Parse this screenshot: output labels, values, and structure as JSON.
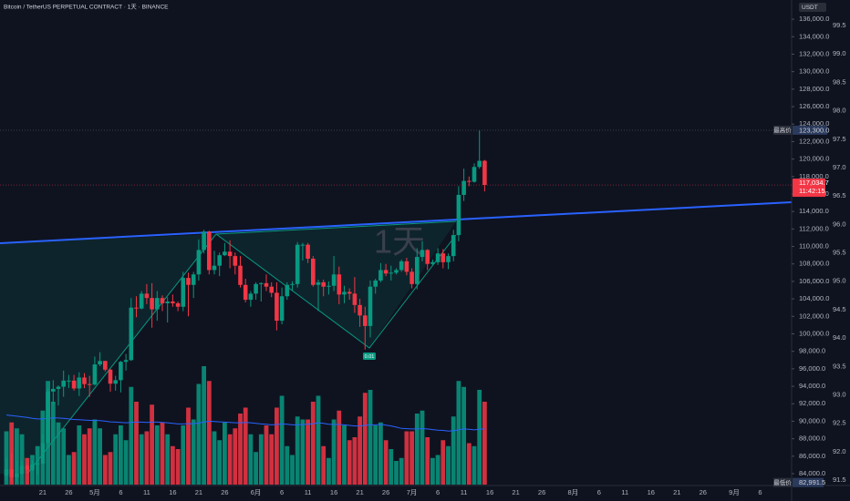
{
  "chart_data": {
    "type": "candlestick",
    "title": "Bitcoin / TetherUS PERPETUAL CONTRACT · 1天 · BINANCE",
    "watermark": "1天",
    "currency": "USDT",
    "categories": [
      null,
      null,
      null,
      null,
      null,
      null,
      null,
      "21",
      null,
      null,
      null,
      null,
      "26",
      null,
      null,
      null,
      null,
      "5月",
      null,
      null,
      null,
      null,
      "6",
      null,
      null,
      null,
      null,
      "11",
      null,
      null,
      null,
      null,
      "16",
      null,
      null,
      null,
      null,
      "21",
      null,
      null,
      null,
      null,
      "26",
      null,
      null,
      null,
      null,
      null,
      "6月",
      null,
      null,
      null,
      null,
      "6",
      null,
      null,
      null,
      null,
      "11",
      null,
      null,
      null,
      null,
      "16",
      null,
      null,
      null,
      null,
      "21",
      null,
      null,
      null,
      null,
      "26",
      null,
      null,
      null,
      null,
      "7月",
      null,
      null,
      null,
      null,
      "6",
      null,
      null,
      null,
      null,
      "11",
      null,
      null,
      null,
      null,
      "16",
      null,
      null,
      null,
      null,
      "21",
      null,
      null,
      null,
      null,
      "26",
      null,
      null,
      null,
      null,
      null,
      "8月",
      null,
      null,
      null,
      null,
      "6",
      null,
      null,
      null,
      null,
      "11",
      null,
      null,
      null,
      null,
      "16",
      null,
      null,
      null,
      null,
      "21",
      null,
      null,
      null,
      null,
      "26",
      null,
      null,
      null,
      null,
      null,
      "9月",
      null,
      null,
      null,
      null,
      "6",
      null,
      null
    ],
    "open": [
      83750,
      84500,
      83600,
      84000,
      84900,
      84450,
      85050,
      85150,
      87500,
      93400,
      93700,
      93950,
      94650,
      94650,
      93750,
      95000,
      94250,
      94200,
      96500,
      96900,
      95900,
      94300,
      94700,
      96800,
      97000,
      103000,
      102900,
      104600,
      104100,
      102800,
      104100,
      103500,
      103700,
      103500,
      103100,
      106400,
      105600,
      106800,
      109600,
      111700,
      107300,
      107800,
      109000,
      109400,
      108900,
      107800,
      105600,
      103900,
      104600,
      105700,
      105800,
      105400,
      104700,
      101500,
      104300,
      105600,
      105700,
      110200,
      110200,
      108600,
      105600,
      105900,
      105400,
      105500,
      106800,
      104500,
      104800,
      104600,
      103300,
      102100,
      100900,
      105400,
      106100,
      107300,
      106900,
      107000,
      107300,
      108300,
      107100,
      105700,
      108800,
      109600,
      108000,
      108200,
      109200,
      108200,
      108900,
      111300,
      115900,
      117500,
      117400,
      119100,
      119800,
      null,
      null,
      null,
      null,
      null,
      null,
      null,
      null,
      null,
      null,
      null,
      null,
      null,
      null,
      null,
      null,
      null,
      null,
      null,
      null,
      null,
      null,
      null,
      null,
      null,
      null,
      null,
      null,
      null,
      null,
      null,
      null,
      null,
      null,
      null,
      null,
      null,
      null,
      null,
      null,
      null,
      null,
      null,
      null,
      null,
      null,
      null,
      null,
      null,
      null,
      null,
      null,
      null,
      null,
      null
    ],
    "high": [
      85800,
      86400,
      85500,
      85400,
      85100,
      85500,
      85300,
      88500,
      93800,
      94700,
      94100,
      95800,
      95300,
      95300,
      95600,
      95500,
      95200,
      97400,
      97900,
      96900,
      96000,
      95200,
      96900,
      97700,
      104100,
      104300,
      104900,
      105700,
      105800,
      104900,
      104400,
      104200,
      104500,
      103700,
      107100,
      107000,
      107100,
      110800,
      111900,
      111800,
      109500,
      109300,
      110400,
      110700,
      109300,
      108900,
      106300,
      104900,
      105900,
      105900,
      106800,
      105900,
      105900,
      105300,
      105900,
      106000,
      110500,
      110400,
      110400,
      108900,
      106200,
      106200,
      106000,
      108900,
      107700,
      105500,
      105200,
      106500,
      104000,
      103100,
      106100,
      106300,
      108100,
      108000,
      107800,
      107500,
      108500,
      108700,
      107500,
      109800,
      110600,
      109700,
      108500,
      109800,
      109700,
      109200,
      111900,
      116900,
      118900,
      118000,
      119500,
      123300,
      119900,
      null,
      null,
      null,
      null,
      null,
      null,
      null,
      null,
      null,
      null,
      null,
      null,
      null,
      null,
      null,
      null,
      null,
      null,
      null,
      null,
      null,
      null,
      null,
      null,
      null,
      null,
      null,
      null,
      null,
      null,
      null,
      null,
      null,
      null,
      null,
      null,
      null,
      null,
      null,
      null,
      null,
      null,
      null,
      null,
      null,
      null,
      null,
      null,
      null,
      null,
      null,
      null,
      null,
      null,
      null
    ],
    "low": [
      83200,
      83100,
      83000,
      83800,
      84100,
      84300,
      83900,
      85100,
      87000,
      91900,
      91800,
      92800,
      93800,
      93500,
      92900,
      93800,
      92800,
      94100,
      96300,
      95700,
      93400,
      93500,
      93300,
      95800,
      96900,
      101900,
      102800,
      103400,
      100700,
      101500,
      102600,
      101300,
      103100,
      102600,
      102600,
      102000,
      104100,
      106100,
      109200,
      106800,
      106800,
      106600,
      108900,
      107500,
      106800,
      105300,
      103600,
      103100,
      103900,
      103700,
      104900,
      104200,
      100400,
      101100,
      103900,
      104900,
      105300,
      108400,
      108100,
      105400,
      102600,
      104300,
      104500,
      104900,
      103400,
      103500,
      103900,
      102400,
      100800,
      98200,
      99600,
      104600,
      105900,
      106600,
      106100,
      106800,
      107100,
      106700,
      105200,
      105100,
      108300,
      107300,
      107800,
      107900,
      107500,
      107400,
      108300,
      110600,
      115200,
      116900,
      117300,
      118900,
      116300,
      null,
      null,
      null,
      null,
      null,
      null,
      null,
      null,
      null,
      null,
      null,
      null,
      null,
      null,
      null,
      null,
      null,
      null,
      null,
      null,
      null,
      null,
      null,
      null,
      null,
      null,
      null,
      null,
      null,
      null,
      null,
      null,
      null,
      null,
      null,
      null,
      null,
      null,
      null,
      null,
      null,
      null,
      null,
      null,
      null,
      null,
      null,
      null,
      null,
      null,
      null,
      null,
      null,
      null,
      null
    ],
    "close": [
      84500,
      83600,
      84000,
      84900,
      84450,
      85050,
      85150,
      87500,
      93400,
      93700,
      93950,
      94650,
      94650,
      93750,
      95000,
      94250,
      94200,
      96500,
      96900,
      95900,
      94300,
      94700,
      96800,
      97000,
      103000,
      102900,
      104600,
      104100,
      102800,
      104100,
      103500,
      103700,
      103500,
      103100,
      106400,
      105600,
      106800,
      109600,
      111700,
      107300,
      107800,
      109000,
      109400,
      108900,
      107800,
      105600,
      103900,
      104600,
      105700,
      105800,
      105400,
      104700,
      101500,
      104300,
      105600,
      105700,
      110200,
      110200,
      108600,
      105600,
      105900,
      105400,
      105500,
      106800,
      104500,
      104800,
      104600,
      103300,
      102100,
      100900,
      105400,
      106100,
      107300,
      106900,
      107000,
      107300,
      108300,
      107100,
      105700,
      108800,
      109600,
      108000,
      108200,
      109200,
      108200,
      108900,
      111300,
      115900,
      117500,
      117400,
      119100,
      119800,
      117034.7,
      null,
      null,
      null,
      null,
      null,
      null,
      null,
      null,
      null,
      null,
      null,
      null,
      null,
      null,
      null,
      null,
      null,
      null,
      null,
      null,
      null,
      null,
      null,
      null,
      null,
      null,
      null,
      null,
      null,
      null,
      null,
      null,
      null,
      null,
      null,
      null,
      null,
      null,
      null,
      null,
      null,
      null,
      null,
      null,
      null,
      null,
      null,
      null,
      null,
      null,
      null,
      null,
      null,
      null,
      null
    ],
    "volume": [
      180,
      210,
      190,
      170,
      90,
      100,
      130,
      250,
      350,
      280,
      210,
      190,
      100,
      110,
      200,
      170,
      190,
      220,
      190,
      100,
      110,
      170,
      200,
      150,
      330,
      280,
      170,
      180,
      270,
      200,
      210,
      170,
      130,
      120,
      200,
      260,
      220,
      340,
      400,
      350,
      180,
      150,
      210,
      170,
      190,
      240,
      260,
      170,
      110,
      170,
      200,
      170,
      260,
      300,
      130,
      100,
      230,
      220,
      220,
      280,
      300,
      130,
      90,
      220,
      250,
      200,
      150,
      160,
      230,
      310,
      320,
      200,
      210,
      150,
      120,
      80,
      90,
      180,
      180,
      240,
      250,
      160,
      90,
      100,
      150,
      130,
      230,
      350,
      330,
      140,
      130,
      320,
      280,
      null,
      null,
      null,
      null,
      null,
      null,
      null,
      null,
      null,
      null,
      null,
      null,
      null,
      null,
      null,
      null,
      null,
      null,
      null,
      null,
      null,
      null,
      null,
      null,
      null,
      null,
      null,
      null,
      null,
      null,
      null,
      null,
      null,
      null,
      null,
      null,
      null,
      null,
      null,
      null,
      null,
      null,
      null,
      null,
      null,
      null,
      null,
      null,
      null,
      null,
      null,
      null,
      null,
      null,
      null
    ],
    "volume_ma": [
      235,
      233,
      231,
      229,
      227,
      224,
      222,
      222,
      224,
      225,
      225,
      224,
      222,
      220,
      219,
      218,
      217,
      217,
      216,
      214,
      212,
      211,
      210,
      209,
      210,
      211,
      211,
      210,
      211,
      211,
      210,
      209,
      207,
      205,
      205,
      206,
      206,
      208,
      211,
      214,
      213,
      212,
      211,
      210,
      209,
      209,
      210,
      209,
      207,
      205,
      204,
      202,
      203,
      205,
      204,
      202,
      202,
      203,
      204,
      206,
      209,
      207,
      204,
      203,
      203,
      202,
      200,
      198,
      198,
      200,
      202,
      202,
      203,
      201,
      198,
      194,
      190,
      189,
      188,
      188,
      189,
      188,
      186,
      184,
      183,
      181,
      182,
      185,
      188,
      187,
      185,
      187,
      188,
      null,
      null,
      null,
      null,
      null,
      null,
      null,
      null,
      null,
      null,
      null,
      null,
      null,
      null,
      null,
      null,
      null,
      null,
      null,
      null,
      null,
      null,
      null,
      null,
      null,
      null,
      null,
      null,
      null,
      null,
      null,
      null,
      null,
      null,
      null,
      null,
      null,
      null,
      null,
      null,
      null,
      null,
      null,
      null,
      null,
      null,
      null,
      null,
      null,
      null,
      null,
      null,
      null,
      null,
      null
    ],
    "up_color": "#089981",
    "down_color": "#f23645",
    "volume_ma_color": "#2962ff",
    "ylim": [
      82750,
      138200
    ],
    "yticks": [
      {
        "value": 136000,
        "label": "136,000.0"
      },
      {
        "value": 134000,
        "label": "134,000.0"
      },
      {
        "value": 132000,
        "label": "132,000.0"
      },
      {
        "value": 130000,
        "label": "130,000.0"
      },
      {
        "value": 128000,
        "label": "128,000.0"
      },
      {
        "value": 126000,
        "label": "126,000.0"
      },
      {
        "value": 124000,
        "label": "124,000.0"
      },
      {
        "value": 122000,
        "label": "122,000.0"
      },
      {
        "value": 120000,
        "label": "120,000.0"
      },
      {
        "value": 118000,
        "label": "118,000.0"
      },
      {
        "value": 116000,
        "label": "116,000.0"
      },
      {
        "value": 114000,
        "label": "114,000.0"
      },
      {
        "value": 112000,
        "label": "112,000.0"
      },
      {
        "value": 110000,
        "label": "110,000.0"
      },
      {
        "value": 108000,
        "label": "108,000.0"
      },
      {
        "value": 106000,
        "label": "106,000.0"
      },
      {
        "value": 104000,
        "label": "104,000.0"
      },
      {
        "value": 102000,
        "label": "102,000.0"
      },
      {
        "value": 100000,
        "label": "100,000.0"
      },
      {
        "value": 98000,
        "label": "98,000.0"
      },
      {
        "value": 96000,
        "label": "96,000.0"
      },
      {
        "value": 94000,
        "label": "94,000.0"
      },
      {
        "value": 92000,
        "label": "92,000.0"
      },
      {
        "value": 90000,
        "label": "90,000.0"
      },
      {
        "value": 88000,
        "label": "88,000.0"
      },
      {
        "value": 86000,
        "label": "86,000.0"
      },
      {
        "value": 84000,
        "label": "84,000.0"
      }
    ],
    "y2lim": [
      91.42,
      99.95
    ],
    "y2ticks": [
      99.5,
      {
        "value": 99,
        "label": "99.0"
      },
      98.5,
      {
        "value": 98,
        "label": "98.0"
      },
      97.5,
      {
        "value": 97,
        "label": "97.0"
      },
      96.5,
      {
        "value": 96,
        "label": "96.0"
      },
      95.5,
      {
        "value": 95,
        "label": "95.0"
      },
      94.5,
      {
        "value": 94,
        "label": "94.0"
      },
      93.5,
      {
        "value": 93,
        "label": "93.0"
      },
      92.5,
      {
        "value": 92,
        "label": "92.0"
      },
      91.5
    ],
    "high_marker": {
      "label": "最高价",
      "value": 123300,
      "value_label": "123,300.0"
    },
    "low_marker": {
      "label": "最低价",
      "value": 82991.5,
      "value_label": "82,991.5"
    },
    "last_price": {
      "value": 117034.7,
      "value_label": "117,034.7",
      "countdown": "11:42:15"
    },
    "pattern_label": "0.01"
  }
}
